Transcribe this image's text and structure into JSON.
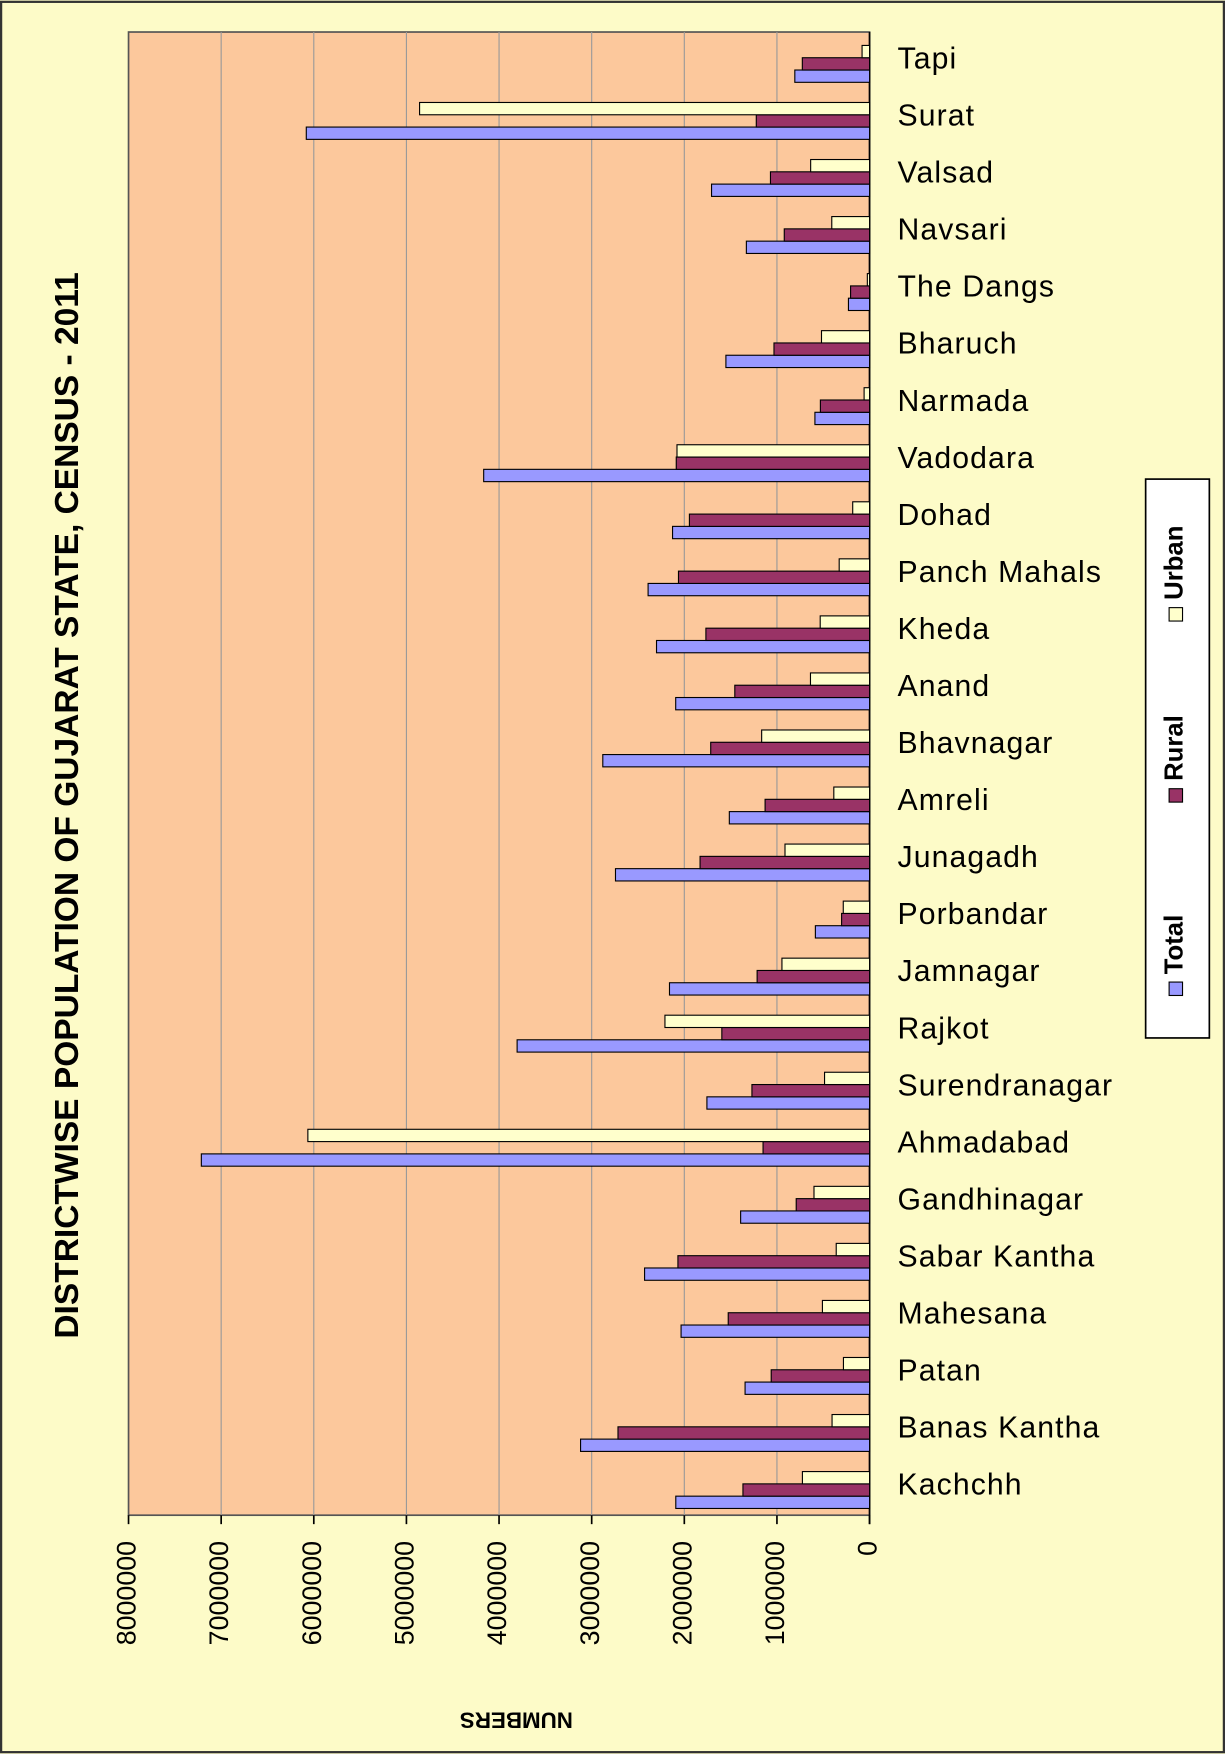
{
  "chart_data": {
    "type": "bar",
    "orientation": "rotated",
    "title": "DISTRICTWISE POPULATION OF GUJARAT STATE, CENSUS - 2011",
    "y_label": "NUMBERS",
    "categories": [
      "Kachchh",
      "Banas Kantha",
      "Patan",
      "Mahesana",
      "Sabar Kantha",
      "Gandhinagar",
      "Ahmadabad",
      "Surendranagar",
      "Rajkot",
      "Jamnagar",
      "Porbandar",
      "Junagadh",
      "Amreli",
      "Bhavnagar",
      "Anand",
      "Kheda",
      "Panch Mahals",
      "Dohad",
      "Vadodara",
      "Narmada",
      "Bharuch",
      "The Dangs",
      "Navsari",
      "Valsad",
      "Surat",
      "Tapi"
    ],
    "series": [
      {
        "name": "Total",
        "color": "#9999ff",
        "values": [
          2092000,
          3120000,
          1344000,
          2035000,
          2429000,
          1392000,
          7214000,
          1756000,
          3805000,
          2160000,
          585000,
          2743000,
          1514000,
          2880000,
          2093000,
          2300000,
          2391000,
          2127000,
          4166000,
          590000,
          1551000,
          228000,
          1330000,
          1706000,
          6081000,
          807000
        ]
      },
      {
        "name": "Rural",
        "color": "#993366",
        "values": [
          1367000,
          2716000,
          1062000,
          1526000,
          2069000,
          792000,
          1150000,
          1270000,
          1595000,
          1214000,
          302000,
          1830000,
          1128000,
          1715000,
          1455000,
          1767000,
          2063000,
          1945000,
          2087000,
          531000,
          1032000,
          205000,
          921000,
          1070000,
          1223000,
          726000
        ]
      },
      {
        "name": "Urban",
        "color": "#ffffcc",
        "values": [
          725000,
          405000,
          282000,
          509000,
          360000,
          600000,
          6064000,
          486000,
          2209000,
          946000,
          284000,
          913000,
          386000,
          1165000,
          638000,
          533000,
          328000,
          182000,
          2079000,
          59000,
          519000,
          24000,
          408000,
          636000,
          4858000,
          81000
        ]
      }
    ],
    "ylim": [
      0,
      8000000
    ],
    "yticks": [
      0,
      1000000,
      2000000,
      3000000,
      4000000,
      5000000,
      6000000,
      7000000,
      8000000
    ],
    "grid": true,
    "plot_color": "#fcc89c",
    "background": "#fdfbc8",
    "legend": "right"
  }
}
